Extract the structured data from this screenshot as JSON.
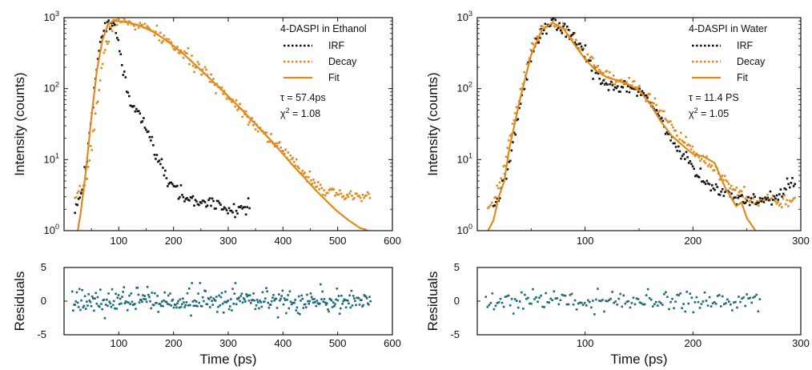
{
  "colors": {
    "irf": "#111111",
    "decay": "#e08a1e",
    "fit": "#e08a1e",
    "residuals": "#1f6a78",
    "axis": "#111111"
  },
  "chart_data": [
    {
      "id": "ethanol",
      "type": "scatter",
      "title": "4-DASPI in Ethanol",
      "xlabel": "Time (ps)",
      "ylabel": "Intensity (counts)",
      "xlim": [
        0,
        600
      ],
      "ylim": [
        1,
        1000
      ],
      "yscale": "log",
      "x_ticks": [
        "100",
        "200",
        "300",
        "400",
        "500",
        "600"
      ],
      "y_ticks": [
        {
          "base": "10",
          "exp": "0"
        },
        {
          "base": "10",
          "exp": "1"
        },
        {
          "base": "10",
          "exp": "2"
        },
        {
          "base": "10",
          "exp": "3"
        }
      ],
      "legend_position": "top-right",
      "legend": [
        {
          "name": "IRF",
          "style": "dotted",
          "color": "#111111"
        },
        {
          "name": "Decay",
          "style": "dotted",
          "color": "#e08a1e"
        },
        {
          "name": "Fit",
          "style": "solid",
          "color": "#e08a1e"
        }
      ],
      "tau_text": "τ = 57.4ps",
      "chi_label": "χ",
      "chi_exp": "2",
      "chi_value": " = 1.08",
      "series": [
        {
          "name": "IRF",
          "x": [
            20,
            30,
            40,
            50,
            60,
            70,
            80,
            85,
            90,
            95,
            100,
            110,
            120,
            130,
            140,
            150,
            160,
            170,
            180,
            190,
            200,
            210,
            220,
            240,
            260,
            280,
            300,
            320,
            340
          ],
          "y": [
            2,
            3,
            8,
            40,
            200,
            550,
            900,
            950,
            800,
            600,
            400,
            150,
            70,
            45,
            40,
            28,
            18,
            11,
            7,
            5,
            4,
            3.5,
            3,
            2.5,
            2.5,
            2.5,
            2,
            2,
            2
          ]
        },
        {
          "name": "Decay",
          "x": [
            20,
            30,
            40,
            50,
            60,
            70,
            80,
            90,
            100,
            120,
            140,
            160,
            180,
            200,
            220,
            240,
            260,
            280,
            300,
            320,
            340,
            360,
            380,
            400,
            420,
            440,
            460,
            480,
            500,
            520,
            540,
            560
          ],
          "y": [
            2.5,
            3.5,
            5,
            15,
            60,
            220,
            500,
            870,
            900,
            850,
            760,
            650,
            520,
            400,
            300,
            215,
            155,
            110,
            78,
            55,
            38,
            26,
            19,
            13,
            9,
            6.5,
            4.8,
            3.6,
            3,
            3,
            3,
            3
          ]
        },
        {
          "name": "Fit",
          "x": [
            25,
            30,
            40,
            50,
            60,
            70,
            80,
            90,
            100,
            120,
            140,
            160,
            180,
            200,
            220,
            240,
            260,
            280,
            300,
            320,
            340,
            360,
            380,
            400,
            420,
            440,
            460,
            480,
            500,
            520,
            540,
            555
          ],
          "y": [
            1,
            1.7,
            7,
            40,
            180,
            480,
            800,
            900,
            890,
            850,
            760,
            650,
            520,
            400,
            300,
            215,
            155,
            110,
            78,
            55,
            38,
            26,
            18,
            12,
            8,
            5.5,
            3.7,
            2.6,
            1.85,
            1.4,
            1.1,
            1
          ]
        }
      ],
      "residuals": {
        "ylabel": "Residuals",
        "ylim": [
          -5,
          5
        ],
        "y_ticks": [
          "5",
          "0",
          "-5"
        ],
        "x_ticks": [
          "100",
          "200",
          "300",
          "400",
          "500",
          "600"
        ],
        "x_range": [
          15,
          560
        ],
        "noise_sd": 0.9,
        "count": 330
      }
    },
    {
      "id": "water",
      "type": "scatter",
      "title": "4-DASPI in Water",
      "xlabel": "Time (ps)",
      "ylabel": "Intensity (counts)",
      "xlim": [
        0,
        300
      ],
      "ylim": [
        1,
        1000
      ],
      "yscale": "log",
      "x_ticks": [
        "100",
        "200",
        "300"
      ],
      "y_ticks": [
        {
          "base": "10",
          "exp": "0"
        },
        {
          "base": "10",
          "exp": "1"
        },
        {
          "base": "10",
          "exp": "2"
        },
        {
          "base": "10",
          "exp": "3"
        }
      ],
      "legend_position": "top-right",
      "legend": [
        {
          "name": "IRF",
          "style": "dotted",
          "color": "#111111"
        },
        {
          "name": "Decay",
          "style": "dotted",
          "color": "#e08a1e"
        },
        {
          "name": "Fit",
          "style": "solid",
          "color": "#e08a1e"
        }
      ],
      "tau_text": "τ = 11.4 PS",
      "chi_label": "χ",
      "chi_exp": "2",
      "chi_value": " = 1.05",
      "series": [
        {
          "name": "IRF",
          "x": [
            15,
            20,
            30,
            40,
            50,
            60,
            70,
            80,
            90,
            100,
            110,
            120,
            130,
            140,
            150,
            160,
            170,
            180,
            190,
            200,
            210,
            220,
            240,
            260,
            280,
            295
          ],
          "y": [
            2,
            3,
            10,
            60,
            280,
            640,
            800,
            720,
            500,
            320,
            160,
            110,
            100,
            100,
            90,
            65,
            35,
            18,
            12,
            8,
            5,
            4,
            3,
            2.5,
            3,
            5
          ]
        },
        {
          "name": "Decay",
          "x": [
            10,
            15,
            20,
            25,
            30,
            40,
            50,
            60,
            70,
            80,
            90,
            100,
            110,
            120,
            130,
            140,
            150,
            160,
            170,
            180,
            190,
            200,
            210,
            220,
            230,
            240,
            250,
            260,
            270,
            280,
            295
          ],
          "y": [
            1.8,
            2.5,
            4,
            8,
            20,
            90,
            350,
            700,
            850,
            720,
            480,
            300,
            200,
            150,
            130,
            120,
            100,
            75,
            50,
            30,
            20,
            13,
            10,
            7,
            5,
            3.5,
            3,
            2.5,
            2.8,
            2.5,
            2.8
          ]
        },
        {
          "name": "Fit",
          "x": [
            10,
            15,
            20,
            25,
            30,
            40,
            50,
            60,
            70,
            80,
            90,
            100,
            110,
            120,
            130,
            140,
            150,
            160,
            170,
            180,
            190,
            200,
            210,
            220,
            230,
            235,
            240,
            245,
            250,
            258
          ],
          "y": [
            1,
            1.4,
            3,
            5,
            15,
            75,
            300,
            680,
            850,
            700,
            420,
            260,
            180,
            145,
            130,
            115,
            95,
            62,
            35,
            22,
            16,
            12,
            11,
            9,
            4,
            3,
            2.2,
            2.5,
            1.5,
            1
          ]
        }
      ],
      "residuals": {
        "ylabel": "Residuals",
        "ylim": [
          -5,
          5
        ],
        "y_ticks": [
          "5",
          "0",
          "-5"
        ],
        "x_ticks": [
          "100",
          "200",
          "300"
        ],
        "x_range": [
          8,
          262
        ],
        "noise_sd": 0.75,
        "count": 170
      }
    }
  ]
}
